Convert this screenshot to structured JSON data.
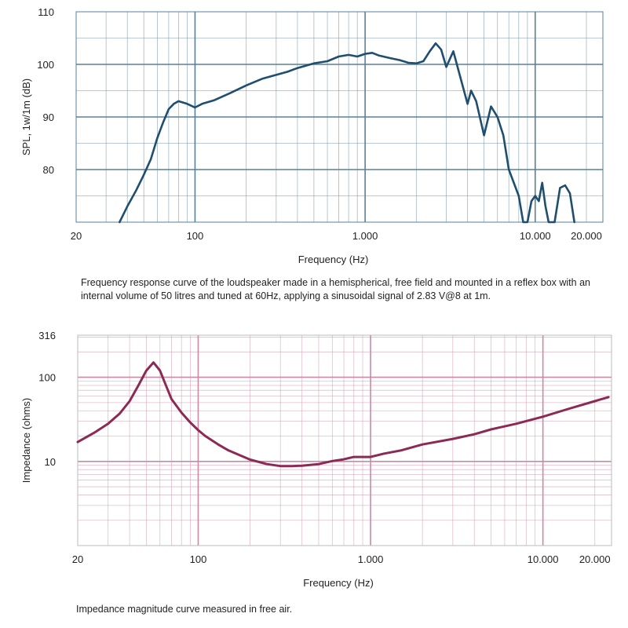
{
  "chart_data": [
    {
      "type": "line",
      "id": "spl",
      "x_scale": "log",
      "xlim": [
        20,
        25000
      ],
      "ylim": [
        70,
        110
      ],
      "xlabel": "Frequency (Hz)",
      "ylabel": "SPL, 1w/1m (dB)",
      "x_ticks": [
        {
          "value": 20,
          "label": "20"
        },
        {
          "value": 100,
          "label": "100"
        },
        {
          "value": 1000,
          "label": "1.000"
        },
        {
          "value": 10000,
          "label": "10.000"
        },
        {
          "value": 20000,
          "label": "20.000"
        }
      ],
      "y_ticks": [
        {
          "value": 80,
          "label": "80"
        },
        {
          "value": 90,
          "label": "90"
        },
        {
          "value": 100,
          "label": "100"
        },
        {
          "value": 110,
          "label": "110"
        }
      ],
      "grid": true,
      "caption": "Frequency response curve of the loudspeaker made in a hemispherical, free field and mounted in a reflex box with an internal volume of 50 litres and tuned at 60Hz, applying a sinusoidal signal of 2.83 V@8 at 1m.",
      "color": "#1f4e6e",
      "grid_color": "#5a8098",
      "series": [
        {
          "x": [
            36,
            40,
            45,
            50,
            55,
            60,
            65,
            70,
            75,
            80,
            90,
            100,
            110,
            130,
            160,
            200,
            250,
            300,
            350,
            400,
            500,
            600,
            700,
            800,
            900,
            1000,
            1100,
            1200,
            1400,
            1600,
            1800,
            2000,
            2200,
            2400,
            2600,
            2800,
            3000,
            3300,
            3600,
            4000,
            4200,
            4500,
            5000,
            5500,
            6000,
            6500,
            7000,
            8000,
            8500,
            9000,
            9500,
            10000,
            10500,
            11000,
            11500,
            12000,
            13000,
            14000,
            15000,
            16000,
            17000
          ],
          "y": [
            70,
            73,
            76,
            79,
            82,
            86,
            89,
            91.5,
            92.5,
            93,
            92.5,
            91.8,
            92.5,
            93.2,
            94.5,
            96,
            97.3,
            98,
            98.6,
            99.3,
            100.2,
            100.6,
            101.5,
            101.8,
            101.5,
            102,
            102.2,
            101.7,
            101.2,
            100.8,
            100.3,
            100.2,
            100.6,
            102.5,
            104,
            102.8,
            99.5,
            102.5,
            98,
            92.5,
            95,
            93,
            86.5,
            92,
            90,
            86.5,
            80,
            75,
            70,
            70,
            74,
            75,
            74,
            77.5,
            73,
            70,
            70,
            76.5,
            77,
            75.5,
            70
          ]
        }
      ]
    },
    {
      "type": "line",
      "id": "impedance",
      "x_scale": "log",
      "y_scale": "log",
      "xlim": [
        20,
        25000
      ],
      "ylim": [
        1,
        316
      ],
      "xlabel": "Frequency (Hz)",
      "ylabel": "Impedance (ohms)",
      "x_ticks": [
        {
          "value": 20,
          "label": "20"
        },
        {
          "value": 100,
          "label": "100"
        },
        {
          "value": 1000,
          "label": "1.000"
        },
        {
          "value": 10000,
          "label": "10.000"
        },
        {
          "value": 20000,
          "label": "20.000"
        }
      ],
      "y_ticks": [
        {
          "value": 10,
          "label": "10"
        },
        {
          "value": 100,
          "label": "100"
        },
        {
          "value": 316,
          "label": "316"
        }
      ],
      "grid": true,
      "caption": "Impedance magnitude curve measured in free air.",
      "color": "#8a2a55",
      "grid_color": "#c98aa6",
      "series": [
        {
          "x": [
            20,
            25,
            30,
            35,
            40,
            45,
            50,
            55,
            60,
            65,
            70,
            80,
            90,
            100,
            110,
            130,
            150,
            200,
            250,
            300,
            350,
            400,
            500,
            600,
            700,
            800,
            1000,
            1200,
            1500,
            2000,
            3000,
            4000,
            5000,
            7000,
            10000,
            14000,
            20000,
            24000
          ],
          "y": [
            17,
            22,
            28,
            37,
            52,
            80,
            120,
            150,
            120,
            80,
            55,
            38,
            29,
            23.5,
            20,
            16,
            13.5,
            10.5,
            9.3,
            8.8,
            8.8,
            8.9,
            9.3,
            10.1,
            10.6,
            11.3,
            11.3,
            12.4,
            13.5,
            15.9,
            18.5,
            21,
            24,
            28,
            34,
            42,
            52,
            58
          ]
        }
      ]
    }
  ]
}
